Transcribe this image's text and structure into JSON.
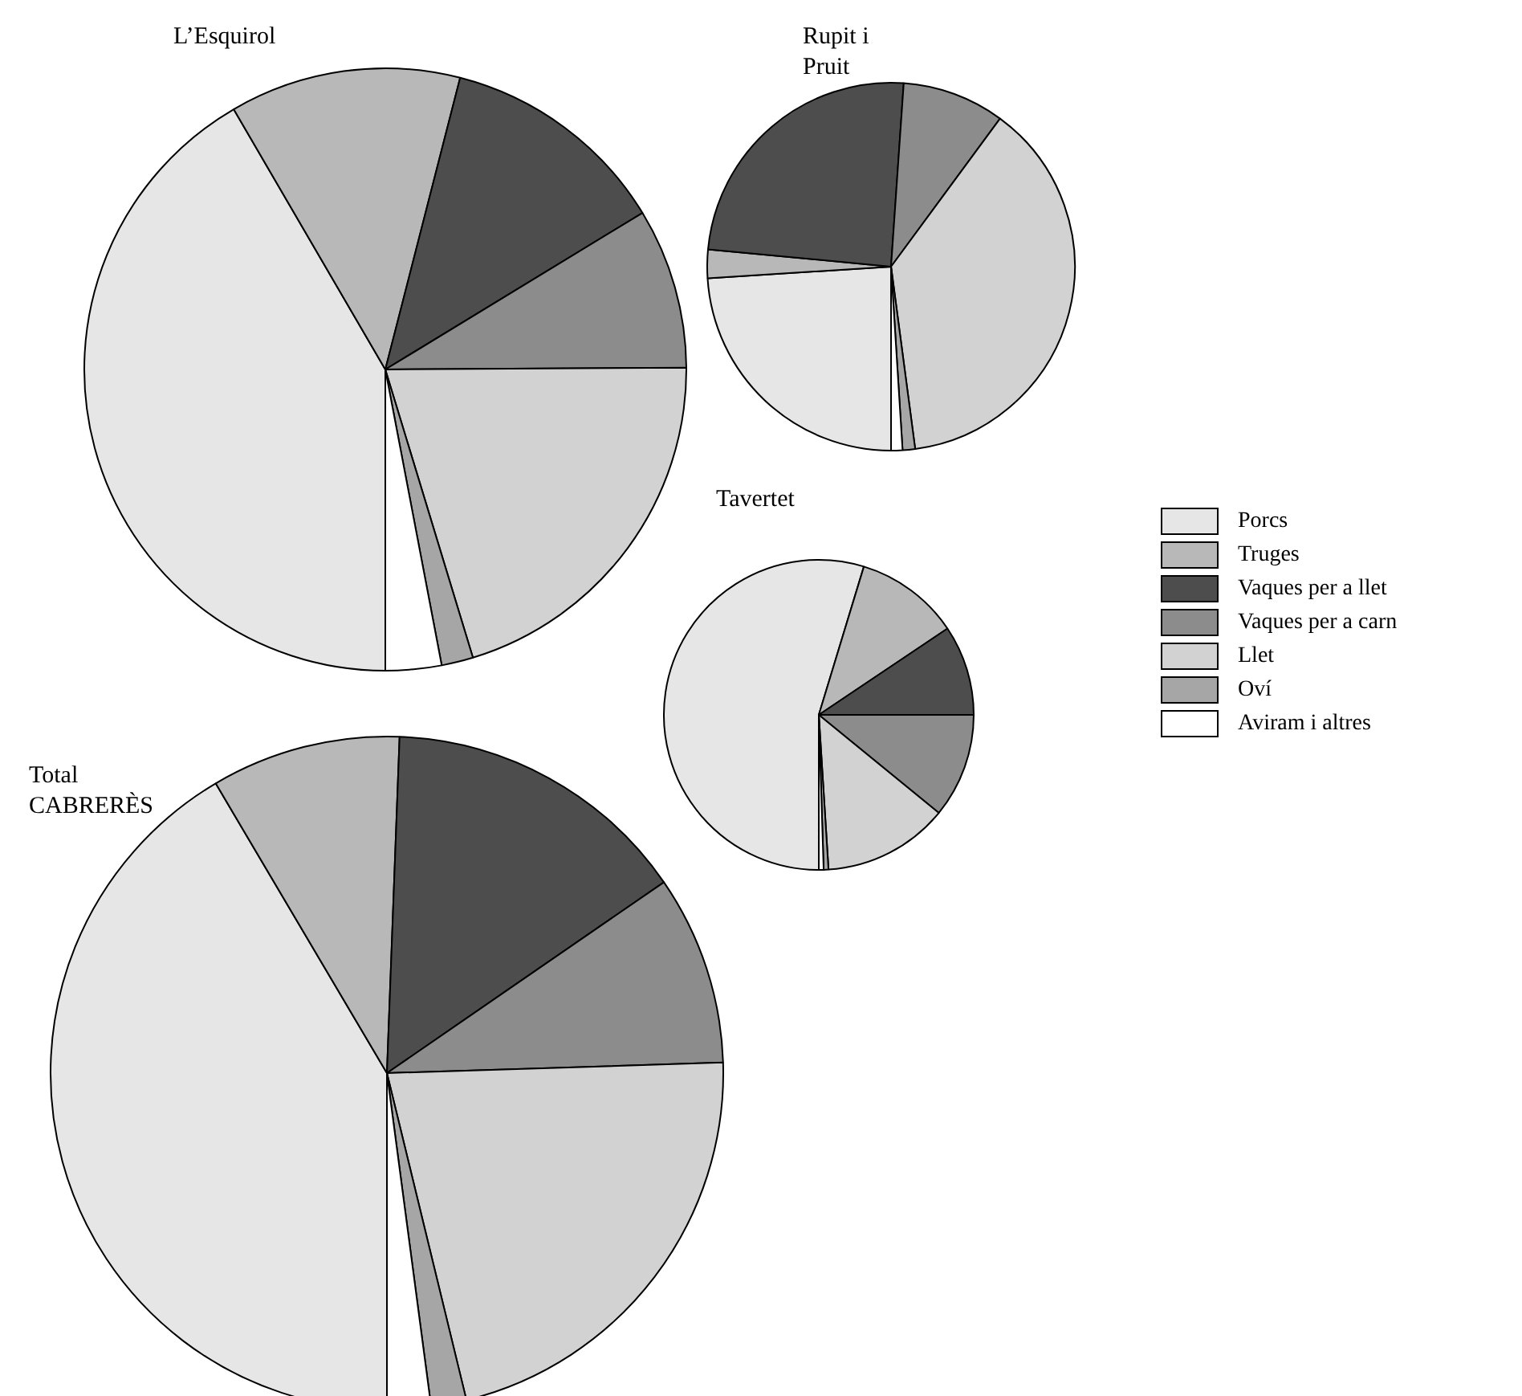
{
  "chart_data": {
    "type": "pie",
    "categories": [
      "Porcs",
      "Truges",
      "Vaques per a llet",
      "Vaques per a carn",
      "Llet",
      "Oví",
      "Aviram i altres"
    ],
    "colors": [
      "#e6e6e6",
      "#b8b8b8",
      "#4d4d4d",
      "#8c8c8c",
      "#d2d2d2",
      "#a6a6a6",
      "#ffffff"
    ],
    "legend": "right",
    "series": [
      {
        "name": "L’Esquirol",
        "values": [
          41.6,
          12.4,
          12.3,
          8.6,
          20.4,
          1.7,
          3.0
        ]
      },
      {
        "name": "Rupit i Pruit",
        "values": [
          24.0,
          2.5,
          24.6,
          9.0,
          37.8,
          1.1,
          1.0
        ]
      },
      {
        "name": "Tavertet",
        "values": [
          54.7,
          10.9,
          9.4,
          10.9,
          13.1,
          0.5,
          0.5
        ]
      },
      {
        "name": "Total CABRERÈS",
        "values": [
          41.5,
          9.1,
          14.8,
          9.1,
          21.7,
          1.7,
          2.1
        ]
      }
    ]
  }
}
